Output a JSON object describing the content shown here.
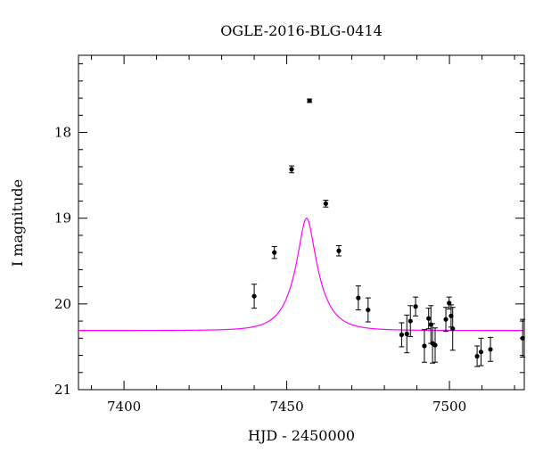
{
  "chart_data": {
    "type": "scatter",
    "title": "OGLE-2016-BLG-0414",
    "xlabel": "HJD - 2450000",
    "ylabel": "I magnitude",
    "xlim": [
      7386,
      7523
    ],
    "ylim": [
      21.0,
      17.1
    ],
    "y_inverted": true,
    "x_ticks": [
      {
        "value": 7400,
        "label": "7400"
      },
      {
        "value": 7450,
        "label": "7450"
      },
      {
        "value": 7500,
        "label": "7500"
      }
    ],
    "y_ticks": [
      {
        "value": 18,
        "label": "18"
      },
      {
        "value": 19,
        "label": "19"
      },
      {
        "value": 20,
        "label": "20"
      },
      {
        "value": 21,
        "label": "21"
      }
    ],
    "grid": false,
    "legend": "none",
    "series": [
      {
        "kind": "points",
        "color": "#000000",
        "points": [
          {
            "x": 7440.0,
            "y": 19.91,
            "err": 0.14
          },
          {
            "x": 7446.2,
            "y": 19.4,
            "err": 0.07
          },
          {
            "x": 7451.5,
            "y": 18.43,
            "err": 0.04
          },
          {
            "x": 7457.0,
            "y": 17.63,
            "err": 0.02
          },
          {
            "x": 7462.0,
            "y": 18.83,
            "err": 0.04
          },
          {
            "x": 7466.0,
            "y": 19.38,
            "err": 0.06
          },
          {
            "x": 7472.0,
            "y": 19.93,
            "err": 0.14
          },
          {
            "x": 7475.0,
            "y": 20.07,
            "err": 0.14
          },
          {
            "x": 7485.3,
            "y": 20.36,
            "err": 0.14
          },
          {
            "x": 7486.9,
            "y": 20.35,
            "err": 0.22
          },
          {
            "x": 7488.0,
            "y": 20.2,
            "err": 0.18
          },
          {
            "x": 7489.6,
            "y": 20.03,
            "err": 0.11
          },
          {
            "x": 7492.3,
            "y": 20.49,
            "err": 0.19
          },
          {
            "x": 7493.6,
            "y": 20.17,
            "err": 0.12
          },
          {
            "x": 7494.3,
            "y": 20.24,
            "err": 0.22
          },
          {
            "x": 7494.8,
            "y": 20.46,
            "err": 0.23
          },
          {
            "x": 7495.6,
            "y": 20.48,
            "err": 0.2
          },
          {
            "x": 7498.9,
            "y": 20.18,
            "err": 0.14
          },
          {
            "x": 7499.9,
            "y": 19.99,
            "err": 0.07
          },
          {
            "x": 7500.5,
            "y": 20.14,
            "err": 0.13
          },
          {
            "x": 7501.0,
            "y": 20.29,
            "err": 0.25
          },
          {
            "x": 7508.5,
            "y": 20.61,
            "err": 0.12
          },
          {
            "x": 7509.7,
            "y": 20.56,
            "err": 0.16
          },
          {
            "x": 7512.6,
            "y": 20.53,
            "err": 0.14
          },
          {
            "x": 7522.5,
            "y": 20.4,
            "err": 0.22
          }
        ]
      },
      {
        "kind": "model",
        "color": "#ff00ff",
        "t0": 7456.1,
        "tE": 7.2,
        "u0": 0.31,
        "baseline": 20.31,
        "fs": 1.0
      }
    ]
  }
}
